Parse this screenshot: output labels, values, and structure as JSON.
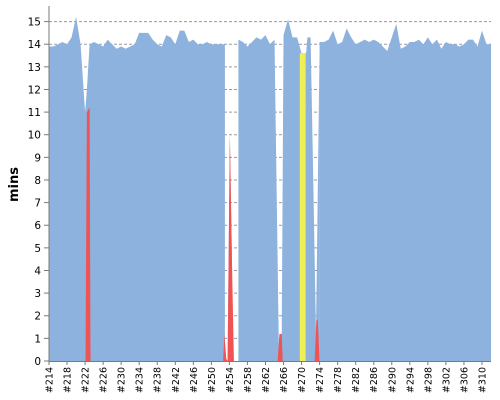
{
  "chart_data": {
    "type": "area",
    "title": "",
    "xlabel": "",
    "ylabel": "mins",
    "ylim": [
      0,
      15.6
    ],
    "yticks": [
      0,
      1,
      2,
      3,
      4,
      5,
      6,
      7,
      8,
      9,
      10,
      11,
      12,
      13,
      14,
      15
    ],
    "grid": "horizontal dashed",
    "x_range": [
      214,
      312
    ],
    "xtick_labels": [
      "#214",
      "#218",
      "#222",
      "#226",
      "#230",
      "#234",
      "#238",
      "#242",
      "#246",
      "#250",
      "#254",
      "#258",
      "#262",
      "#266",
      "#270",
      "#274",
      "#278",
      "#282",
      "#286",
      "#290",
      "#294",
      "#298",
      "#302",
      "#306",
      "#310"
    ],
    "colors": {
      "success": "#8db2dd",
      "failed": "#ef5353",
      "unstable": "#eeee55",
      "grid": "#8a8f99",
      "axis": "#7a7a7a"
    },
    "series": [
      {
        "status": "success",
        "x": [
          214,
          215,
          216,
          217,
          218,
          219,
          220,
          221,
          222,
          222.4,
          223,
          224,
          225,
          226,
          227,
          228,
          229,
          230,
          231,
          232,
          233,
          234,
          235,
          236,
          237,
          238,
          239,
          240,
          241,
          242,
          243,
          244,
          245,
          246,
          247,
          248,
          249,
          250,
          251,
          252,
          253
        ],
        "values": [
          13.9,
          13.9,
          14.0,
          14.1,
          14.0,
          14.3,
          15.2,
          14.0,
          11.0,
          12.0,
          14.0,
          14.1,
          14.0,
          13.9,
          14.2,
          14.0,
          13.8,
          13.9,
          13.8,
          13.9,
          14.0,
          14.5,
          14.5,
          14.5,
          14.2,
          14.0,
          13.9,
          14.4,
          14.3,
          14.0,
          14.6,
          14.6,
          14.1,
          14.2,
          14.0,
          14.0,
          14.1,
          14.0,
          14.0,
          14.0,
          14.0
        ]
      },
      {
        "status": "success",
        "x": [
          253.6,
          254.1,
          254.6
        ],
        "values": [
          0.1,
          10.0,
          4.0
        ]
      },
      {
        "status": "success",
        "x": [
          256,
          257,
          258,
          259,
          260,
          261,
          262,
          263,
          264,
          265,
          265.6,
          266,
          267,
          268,
          269,
          270,
          271,
          271.3,
          272,
          272.5,
          273.2,
          274
        ],
        "values": [
          14.2,
          14.1,
          13.9,
          14.1,
          14.3,
          14.2,
          14.4,
          14.0,
          14.2,
          0.1,
          1.2,
          14.4,
          15.1,
          14.3,
          14.3,
          13.6,
          13.6,
          14.3,
          14.3,
          9.0,
          1.2,
          14.1
        ]
      },
      {
        "status": "success",
        "x": [
          274,
          275,
          276,
          277,
          278,
          279,
          280,
          281,
          282,
          283,
          284,
          285,
          286,
          287,
          288,
          289,
          290,
          291,
          292,
          293,
          294,
          295,
          296,
          297,
          298,
          299,
          300,
          301,
          302,
          303,
          304,
          305,
          306,
          307,
          308,
          309,
          310,
          311,
          312
        ],
        "values": [
          14.1,
          14.1,
          14.2,
          14.6,
          14.0,
          14.1,
          14.7,
          14.3,
          14.0,
          14.1,
          14.2,
          14.1,
          14.2,
          14.1,
          13.9,
          13.7,
          14.3,
          14.9,
          13.8,
          13.9,
          14.1,
          14.1,
          14.2,
          14.0,
          14.3,
          14.0,
          14.2,
          13.8,
          14.1,
          14.0,
          14.0,
          13.9,
          14.0,
          14.2,
          14.2,
          13.9,
          14.6,
          14.0,
          14.0
        ]
      },
      {
        "status": "failed",
        "x": [
          222.1,
          222.4,
          223.0,
          223.2
        ],
        "values": [
          0,
          11.0,
          11.2,
          0
        ]
      },
      {
        "status": "failed",
        "x": [
          252.6,
          252.9,
          253.3,
          253.6
        ],
        "values": [
          0,
          1.2,
          0.1,
          0
        ]
      },
      {
        "status": "failed",
        "x": [
          253.6,
          254.1,
          254.6,
          255.0
        ],
        "values": [
          0,
          10.0,
          4.0,
          0
        ]
      },
      {
        "status": "failed",
        "x": [
          264.7,
          265.1,
          265.6,
          265.8
        ],
        "values": [
          0,
          1.2,
          1.2,
          0
        ]
      },
      {
        "status": "unstable",
        "x": [
          269.6,
          269.6,
          270.9,
          270.9
        ],
        "values": [
          0,
          13.6,
          13.6,
          0
        ]
      },
      {
        "status": "failed",
        "x": [
          272.9,
          273.3,
          273.6,
          274.0
        ],
        "values": [
          0,
          1.8,
          1.8,
          0
        ]
      }
    ]
  }
}
